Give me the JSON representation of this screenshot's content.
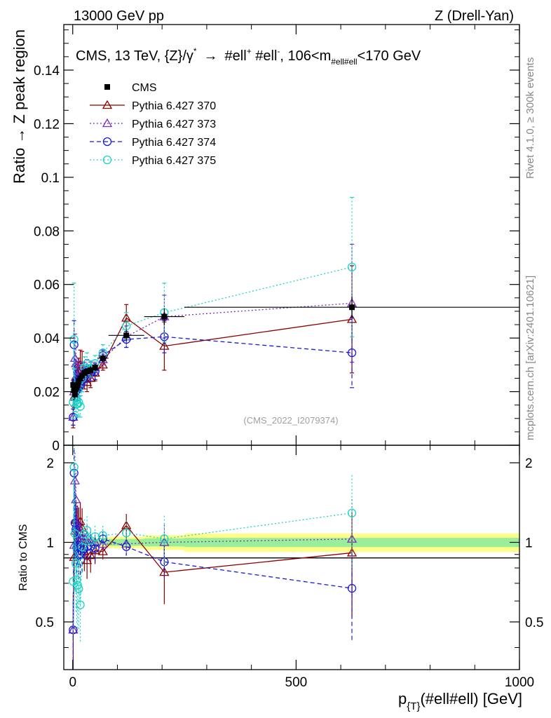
{
  "header": {
    "left": "13000 GeV pp",
    "right": "Z (Drell-Yan)"
  },
  "side_labels": {
    "rivet": "Rivet 4.1.0, ≥ 300k events",
    "mcplots": "mcplots.cern.ch [arXiv:2401.10621]"
  },
  "chart_data": {
    "type": "line",
    "title": "CMS, 13 TeV, {Z}/γ* → #ell+ #ell-, 106<m#ell#ell<170 GeV",
    "title_parts": {
      "pre": "CMS, 13 TeV, {Z}/γ",
      "star": "*",
      "arrow": "→",
      "mid1": "#ell",
      "plus": "+",
      "mid2": " #ell",
      "minus": "-",
      "mid3": ", 106<m",
      "sub": "#ell#ell",
      "post": "<170 GeV"
    },
    "watermark": "(CMS_2022_I2079374)",
    "xlabel": "p_{T}(#ell#ell) [GeV]",
    "xlabel_parts": {
      "p": "p",
      "sub": "{T}",
      "rest": "(#ell#ell) [GeV]"
    },
    "ylabel_main": "Ratio → Z peak region",
    "ylabel_ratio": "Ratio to CMS",
    "xlim": [
      -20,
      1000
    ],
    "ylim_main": [
      0,
      0.157
    ],
    "ylim_ratio": [
      0.33,
      2.33
    ],
    "x_ticks": [
      "0",
      "500",
      "1000"
    ],
    "y_ticks_main": [
      "0",
      "0.02",
      "0.04",
      "0.06",
      "0.08",
      "0.1",
      "0.12",
      "0.14"
    ],
    "y_ticks_ratio": [
      "0.5",
      "1",
      "2"
    ],
    "legend": [
      "CMS",
      "Pythia 6.427 370",
      "Pythia 6.427 373",
      "Pythia 6.427 374",
      "Pythia 6.427 375"
    ],
    "x": [
      1,
      3,
      5,
      7,
      9,
      11,
      13.5,
      17,
      21,
      26,
      32,
      40,
      50,
      67.5,
      120,
      205,
      625
    ],
    "xerr": [
      1,
      1,
      1,
      1,
      1,
      1,
      1.5,
      2,
      2,
      3,
      3,
      5,
      5,
      12.5,
      40,
      45,
      375
    ],
    "data": {
      "name": "CMS",
      "values": [
        0.0225,
        0.0205,
        0.019,
        0.021,
        0.0215,
        0.0225,
        0.024,
        0.025,
        0.026,
        0.027,
        0.0275,
        0.028,
        0.029,
        0.0325,
        0.041,
        0.048,
        0.0515
      ],
      "errors": [
        0.002,
        0.0018,
        0.0017,
        0.0017,
        0.0017,
        0.0017,
        0.0016,
        0.0015,
        0.0015,
        0.0014,
        0.0014,
        0.0014,
        0.0014,
        0.0015,
        0.002,
        0.003,
        0.004
      ],
      "band_stat": [
        0.02,
        0.02,
        0.02,
        0.02,
        0.02,
        0.02,
        0.02,
        0.02,
        0.02,
        0.02,
        0.02,
        0.02,
        0.02,
        0.025,
        0.03,
        0.035,
        0.04
      ],
      "band_total": [
        0.04,
        0.04,
        0.04,
        0.04,
        0.04,
        0.04,
        0.04,
        0.04,
        0.04,
        0.04,
        0.04,
        0.04,
        0.04,
        0.045,
        0.05,
        0.065,
        0.08
      ]
    },
    "series": [
      {
        "name": "Pythia 6.427 370",
        "color": "#8b0000",
        "dash": "",
        "marker": "triangle",
        "values": [
          0.0105,
          0.018,
          0.021,
          0.0255,
          0.0245,
          0.0265,
          0.0275,
          0.03,
          0.0295,
          0.025,
          0.0235,
          0.025,
          0.027,
          0.03,
          0.0475,
          0.037,
          0.047
        ],
        "errors": [
          0.004,
          0.004,
          0.004,
          0.0045,
          0.0045,
          0.0045,
          0.005,
          0.0055,
          0.0055,
          0.004,
          0.0035,
          0.0035,
          0.003,
          0.002,
          0.005,
          0.009,
          0.02
        ]
      },
      {
        "name": "Pythia 6.427 373",
        "color": "#7b2fbe",
        "dash": "2,3",
        "marker": "triangle",
        "values": [
          0.0105,
          0.02,
          0.0325,
          0.0305,
          0.0255,
          0.0255,
          0.0245,
          0.026,
          0.027,
          0.028,
          0.029,
          0.028,
          0.029,
          0.032,
          0.0405,
          0.048,
          0.053
        ],
        "errors": [
          0.003,
          0.005,
          0.009,
          0.008,
          0.005,
          0.005,
          0.004,
          0.004,
          0.004,
          0.003,
          0.003,
          0.003,
          0.002,
          0.002,
          0.004,
          0.008,
          0.022
        ]
      },
      {
        "name": "Pythia 6.427 374",
        "color": "#1a1ad4",
        "dash": "6,4",
        "marker": "circle",
        "values": [
          0.0105,
          0.0375,
          0.0225,
          0.0235,
          0.0205,
          0.022,
          0.0215,
          0.0225,
          0.024,
          0.0255,
          0.0265,
          0.027,
          0.0275,
          0.0335,
          0.0395,
          0.0405,
          0.0345
        ],
        "errors": [
          0.003,
          0.009,
          0.006,
          0.005,
          0.004,
          0.004,
          0.004,
          0.004,
          0.004,
          0.003,
          0.003,
          0.003,
          0.003,
          0.002,
          0.003,
          0.006,
          0.013
        ]
      },
      {
        "name": "Pythia 6.427 375",
        "color": "#1ad4c4",
        "dash": "2,3",
        "marker": "circle",
        "values": [
          0.016,
          0.0395,
          0.0205,
          0.0175,
          0.0155,
          0.0155,
          0.016,
          0.0145,
          0.025,
          0.029,
          0.0305,
          0.0285,
          0.0305,
          0.0345,
          0.0445,
          0.0495,
          0.0665
        ],
        "errors": [
          0.006,
          0.021,
          0.008,
          0.006,
          0.005,
          0.005,
          0.005,
          0.004,
          0.005,
          0.004,
          0.004,
          0.003,
          0.003,
          0.003,
          0.005,
          0.011,
          0.026
        ]
      }
    ]
  }
}
